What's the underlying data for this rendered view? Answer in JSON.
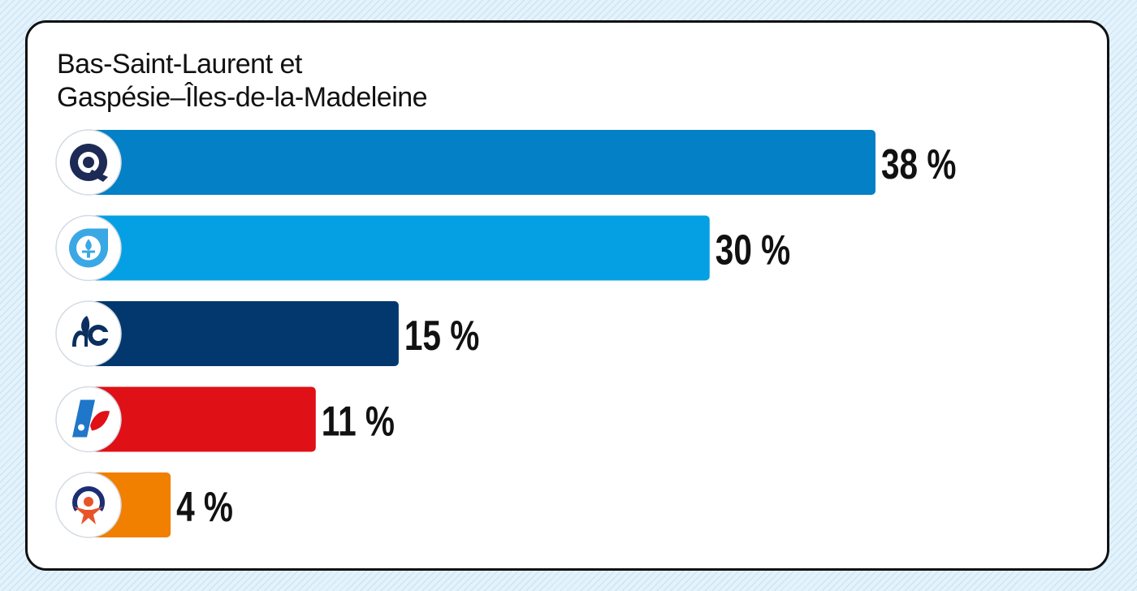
{
  "chart_data": {
    "type": "bar",
    "orientation": "horizontal",
    "title_lines": [
      "Bas-Saint-Laurent et",
      "Gaspésie–Îles-de-la-Madeleine"
    ],
    "xlim": [
      0,
      38
    ],
    "series": [
      {
        "icon": "caq-logo-icon",
        "value": 38,
        "label": "38 %",
        "color": "#0480c6"
      },
      {
        "icon": "pq-logo-icon",
        "value": 30,
        "label": "30 %",
        "color": "#05a0e3"
      },
      {
        "icon": "pcq-logo-icon",
        "value": 15,
        "label": "15 %",
        "color": "#03386e"
      },
      {
        "icon": "plq-logo-icon",
        "value": 11,
        "label": "11 %",
        "color": "#e01017"
      },
      {
        "icon": "qs-logo-icon",
        "value": 4,
        "label": "4 %",
        "color": "#f17f00"
      }
    ],
    "grid": false,
    "legend": "none"
  }
}
